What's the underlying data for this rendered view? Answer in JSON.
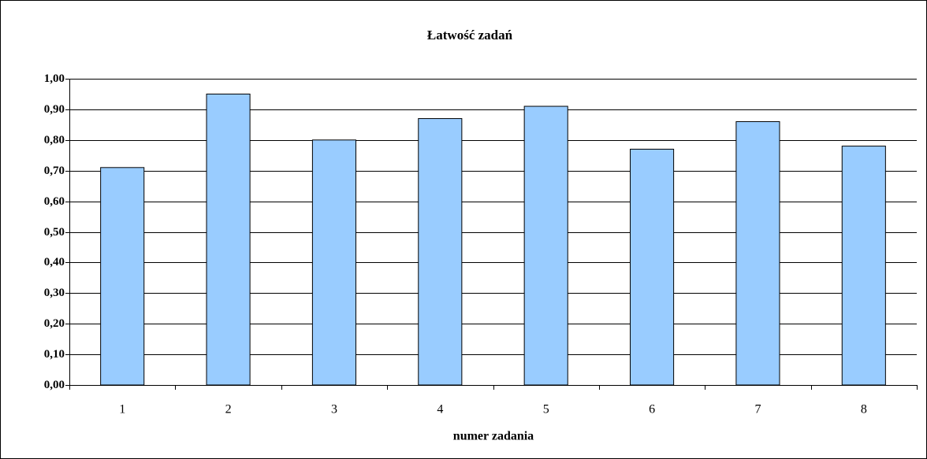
{
  "chart_data": {
    "type": "bar",
    "title": "Łatwość zadań",
    "x_label": "numer zadania",
    "categories": [
      "1",
      "2",
      "3",
      "4",
      "5",
      "6",
      "7",
      "8"
    ],
    "values": [
      0.71,
      0.95,
      0.8,
      0.87,
      0.91,
      0.77,
      0.86,
      0.78
    ],
    "color": "#99ccff",
    "ylim": [
      0,
      1
    ],
    "yticks": [
      {
        "value": 0,
        "label": "0,00"
      },
      {
        "value": 0.1,
        "label": "0,10"
      },
      {
        "value": 0.2,
        "label": "0,20"
      },
      {
        "value": 0.3,
        "label": "0,30"
      },
      {
        "value": 0.4,
        "label": "0,40"
      },
      {
        "value": 0.5,
        "label": "0,50"
      },
      {
        "value": 0.6,
        "label": "0,60"
      },
      {
        "value": 0.7,
        "label": "0,70"
      },
      {
        "value": 0.8,
        "label": "0,80"
      },
      {
        "value": 0.9,
        "label": "0,90"
      },
      {
        "value": 1,
        "label": "1,00"
      }
    ],
    "grid": true
  }
}
